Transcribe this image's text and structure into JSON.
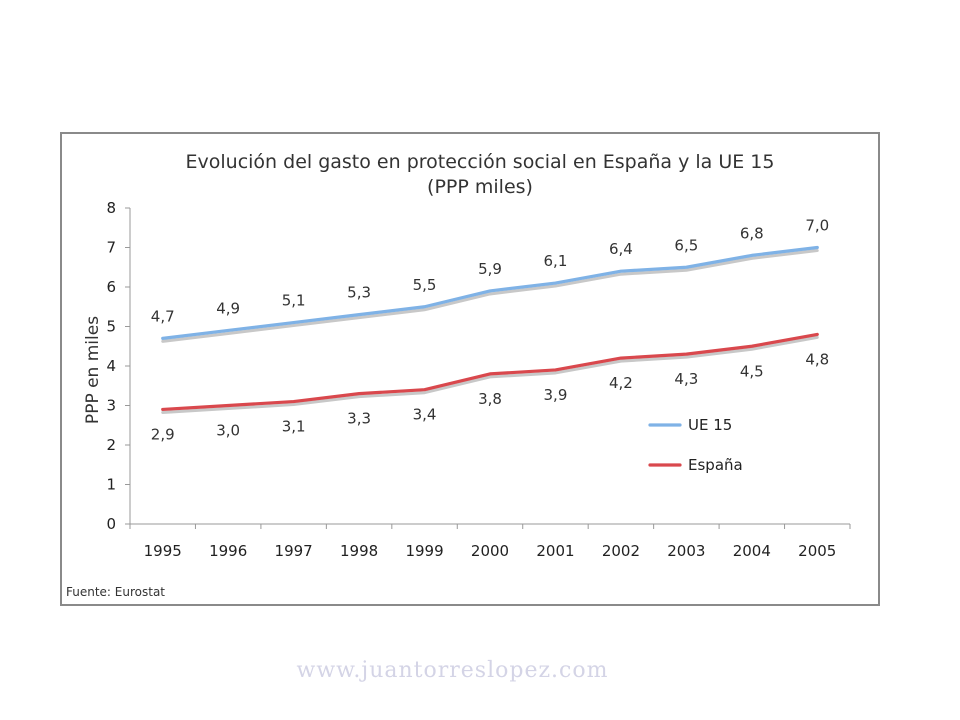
{
  "chart_data": {
    "type": "line",
    "title": "Evolución del gasto en protección social en España y la UE 15",
    "subtitle": "(PPP miles)",
    "ylabel": "PPP en miles",
    "xlabel": "",
    "categories": [
      "1995",
      "1996",
      "1997",
      "1998",
      "1999",
      "2000",
      "2001",
      "2002",
      "2003",
      "2004",
      "2005"
    ],
    "ylim": [
      0,
      8
    ],
    "yticks": [
      "0",
      "1",
      "2",
      "3",
      "4",
      "5",
      "6",
      "7",
      "8"
    ],
    "grid": false,
    "legend_position": "bottom-right",
    "series": [
      {
        "name": "UE 15",
        "color": "#7fb2e6",
        "values": [
          4.7,
          4.9,
          5.1,
          5.3,
          5.5,
          5.9,
          6.1,
          6.4,
          6.5,
          6.8,
          7.0
        ],
        "labels": [
          "4,7",
          "4,9",
          "5,1",
          "5,3",
          "5,5",
          "5,9",
          "6,1",
          "6,4",
          "6,5",
          "6,8",
          "7,0"
        ],
        "label_position": "above"
      },
      {
        "name": "España",
        "color": "#d9484d",
        "values": [
          2.9,
          3.0,
          3.1,
          3.3,
          3.4,
          3.8,
          3.9,
          4.2,
          4.3,
          4.5,
          4.8
        ],
        "labels": [
          "2,9",
          "3,0",
          "3,1",
          "3,3",
          "3,4",
          "3,8",
          "3,9",
          "4,2",
          "4,3",
          "4,5",
          "4,8"
        ],
        "label_position": "below"
      }
    ],
    "source": "Fuente: Eurostat"
  },
  "watermark": "www.juantorreslopez.com"
}
